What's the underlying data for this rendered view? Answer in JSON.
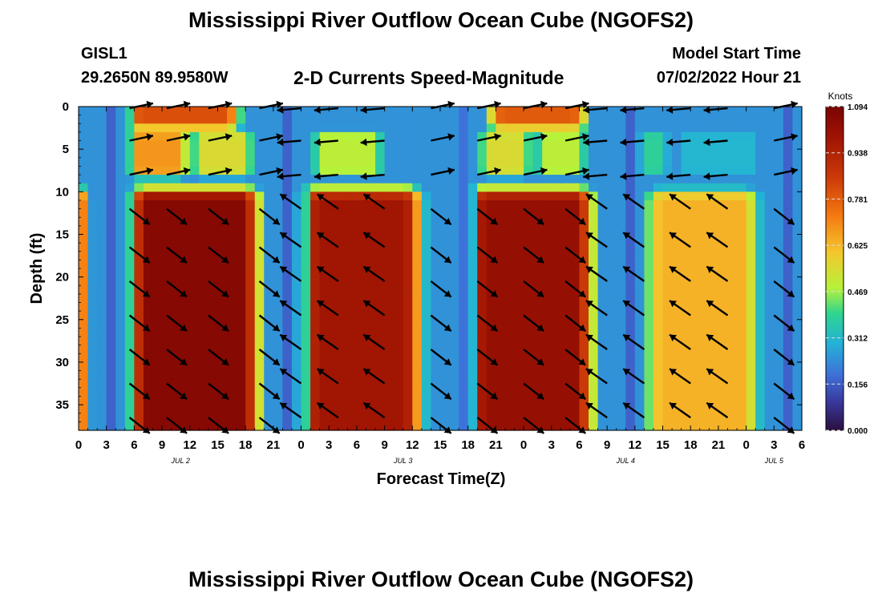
{
  "page": {
    "title_top": "Mississippi River Outflow Ocean Cube (NGOFS2)",
    "title_bottom": "Mississippi River Outflow Ocean Cube (NGOFS2)"
  },
  "header": {
    "station": "GISL1",
    "coords": "29.2650N  89.9580W",
    "subtitle": "2-D Currents Speed-Magnitude",
    "model_start_label": "Model Start Time",
    "model_start_value": "07/02/2022 Hour 21"
  },
  "chart_data": {
    "type": "heatmap",
    "xlabel": "Forecast Time(Z)",
    "ylabel": "Depth (ft)",
    "x_range_hours": [
      0,
      78
    ],
    "ylim": [
      0,
      38
    ],
    "y_inverted": true,
    "x_tick_labels": [
      "0",
      "3",
      "6",
      "9",
      "12",
      "15",
      "18",
      "21",
      "0",
      "3",
      "6",
      "9",
      "12",
      "15",
      "18",
      "21",
      "0",
      "3",
      "6",
      "9",
      "12",
      "15",
      "18",
      "21",
      "0",
      "3",
      "6"
    ],
    "y_tick_labels": [
      "0",
      "5",
      "10",
      "15",
      "20",
      "25",
      "30",
      "35"
    ],
    "date_labels": [
      {
        "text": "JUL 2",
        "hour": 11
      },
      {
        "text": "JUL 3",
        "hour": 35
      },
      {
        "text": "JUL 4",
        "hour": 59
      },
      {
        "text": "JUL 5",
        "hour": 75
      }
    ],
    "colorbar": {
      "unit": "Knots",
      "min": 0.0,
      "max": 1.094,
      "tick_labels": [
        "0.000",
        "0.156",
        "0.312",
        "0.469",
        "0.625",
        "0.781",
        "0.938",
        "1.094"
      ]
    },
    "grid": false
  }
}
